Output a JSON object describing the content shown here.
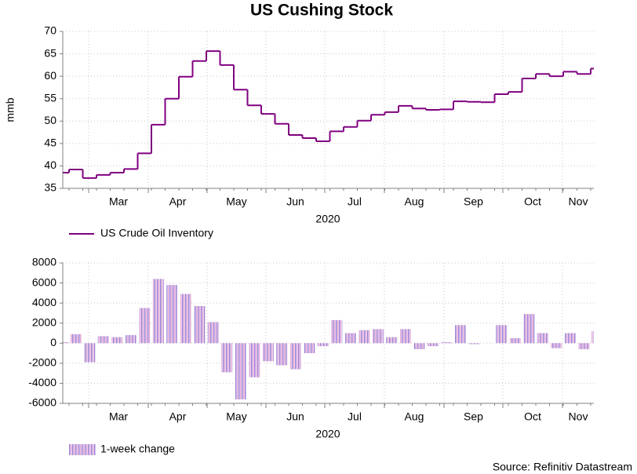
{
  "source": "Source: Refinitiv Datastream",
  "chart_data": [
    {
      "type": "step",
      "title": "US Cushing Stock",
      "ylabel": "mmb",
      "xlabel": "2020",
      "months": [
        "Mar",
        "Apr",
        "May",
        "Jun",
        "Jul",
        "Aug",
        "Sep",
        "Oct",
        "Nov"
      ],
      "ylim": [
        35,
        70
      ],
      "yticks": [
        35,
        40,
        45,
        50,
        55,
        60,
        65,
        70
      ],
      "grid": true,
      "series": [
        {
          "name": "US Crude Oil Inventory",
          "color": "#800080",
          "values": [
            38.5,
            39.2,
            37.3,
            38,
            38.5,
            39.3,
            42.8,
            49.2,
            55,
            59.9,
            63.4,
            65.6,
            62.5,
            57,
            53.5,
            51.6,
            49.4,
            46.9,
            46.2,
            45.5,
            47.7,
            48.7,
            50.1,
            51.4,
            52,
            53.4,
            52.8,
            52.5,
            52.6,
            54.4,
            54.3,
            54.2,
            56,
            56.5,
            59.5,
            60.5,
            60,
            61,
            60.5,
            61.7
          ]
        }
      ]
    },
    {
      "type": "bar",
      "xlabel": "2020",
      "months": [
        "Mar",
        "Apr",
        "May",
        "Jun",
        "Jul",
        "Aug",
        "Sep",
        "Oct",
        "Nov"
      ],
      "ylim": [
        -6000,
        8000
      ],
      "yticks": [
        -6000,
        -4000,
        -2000,
        0,
        2000,
        4000,
        6000,
        8000
      ],
      "grid": true,
      "series": [
        {
          "name": "1-week change",
          "color": "#9b7fd4",
          "values": [
            100,
            900,
            -1900,
            700,
            600,
            800,
            3500,
            6400,
            5800,
            4900,
            3700,
            2100,
            -2900,
            -5600,
            -3400,
            -1800,
            -2200,
            -2600,
            -1000,
            -300,
            2300,
            1000,
            1300,
            1400,
            600,
            1400,
            -600,
            -300,
            100,
            1800,
            -100,
            0,
            1800,
            500,
            2900,
            1000,
            -500,
            1000,
            -600,
            1200
          ]
        }
      ]
    }
  ]
}
